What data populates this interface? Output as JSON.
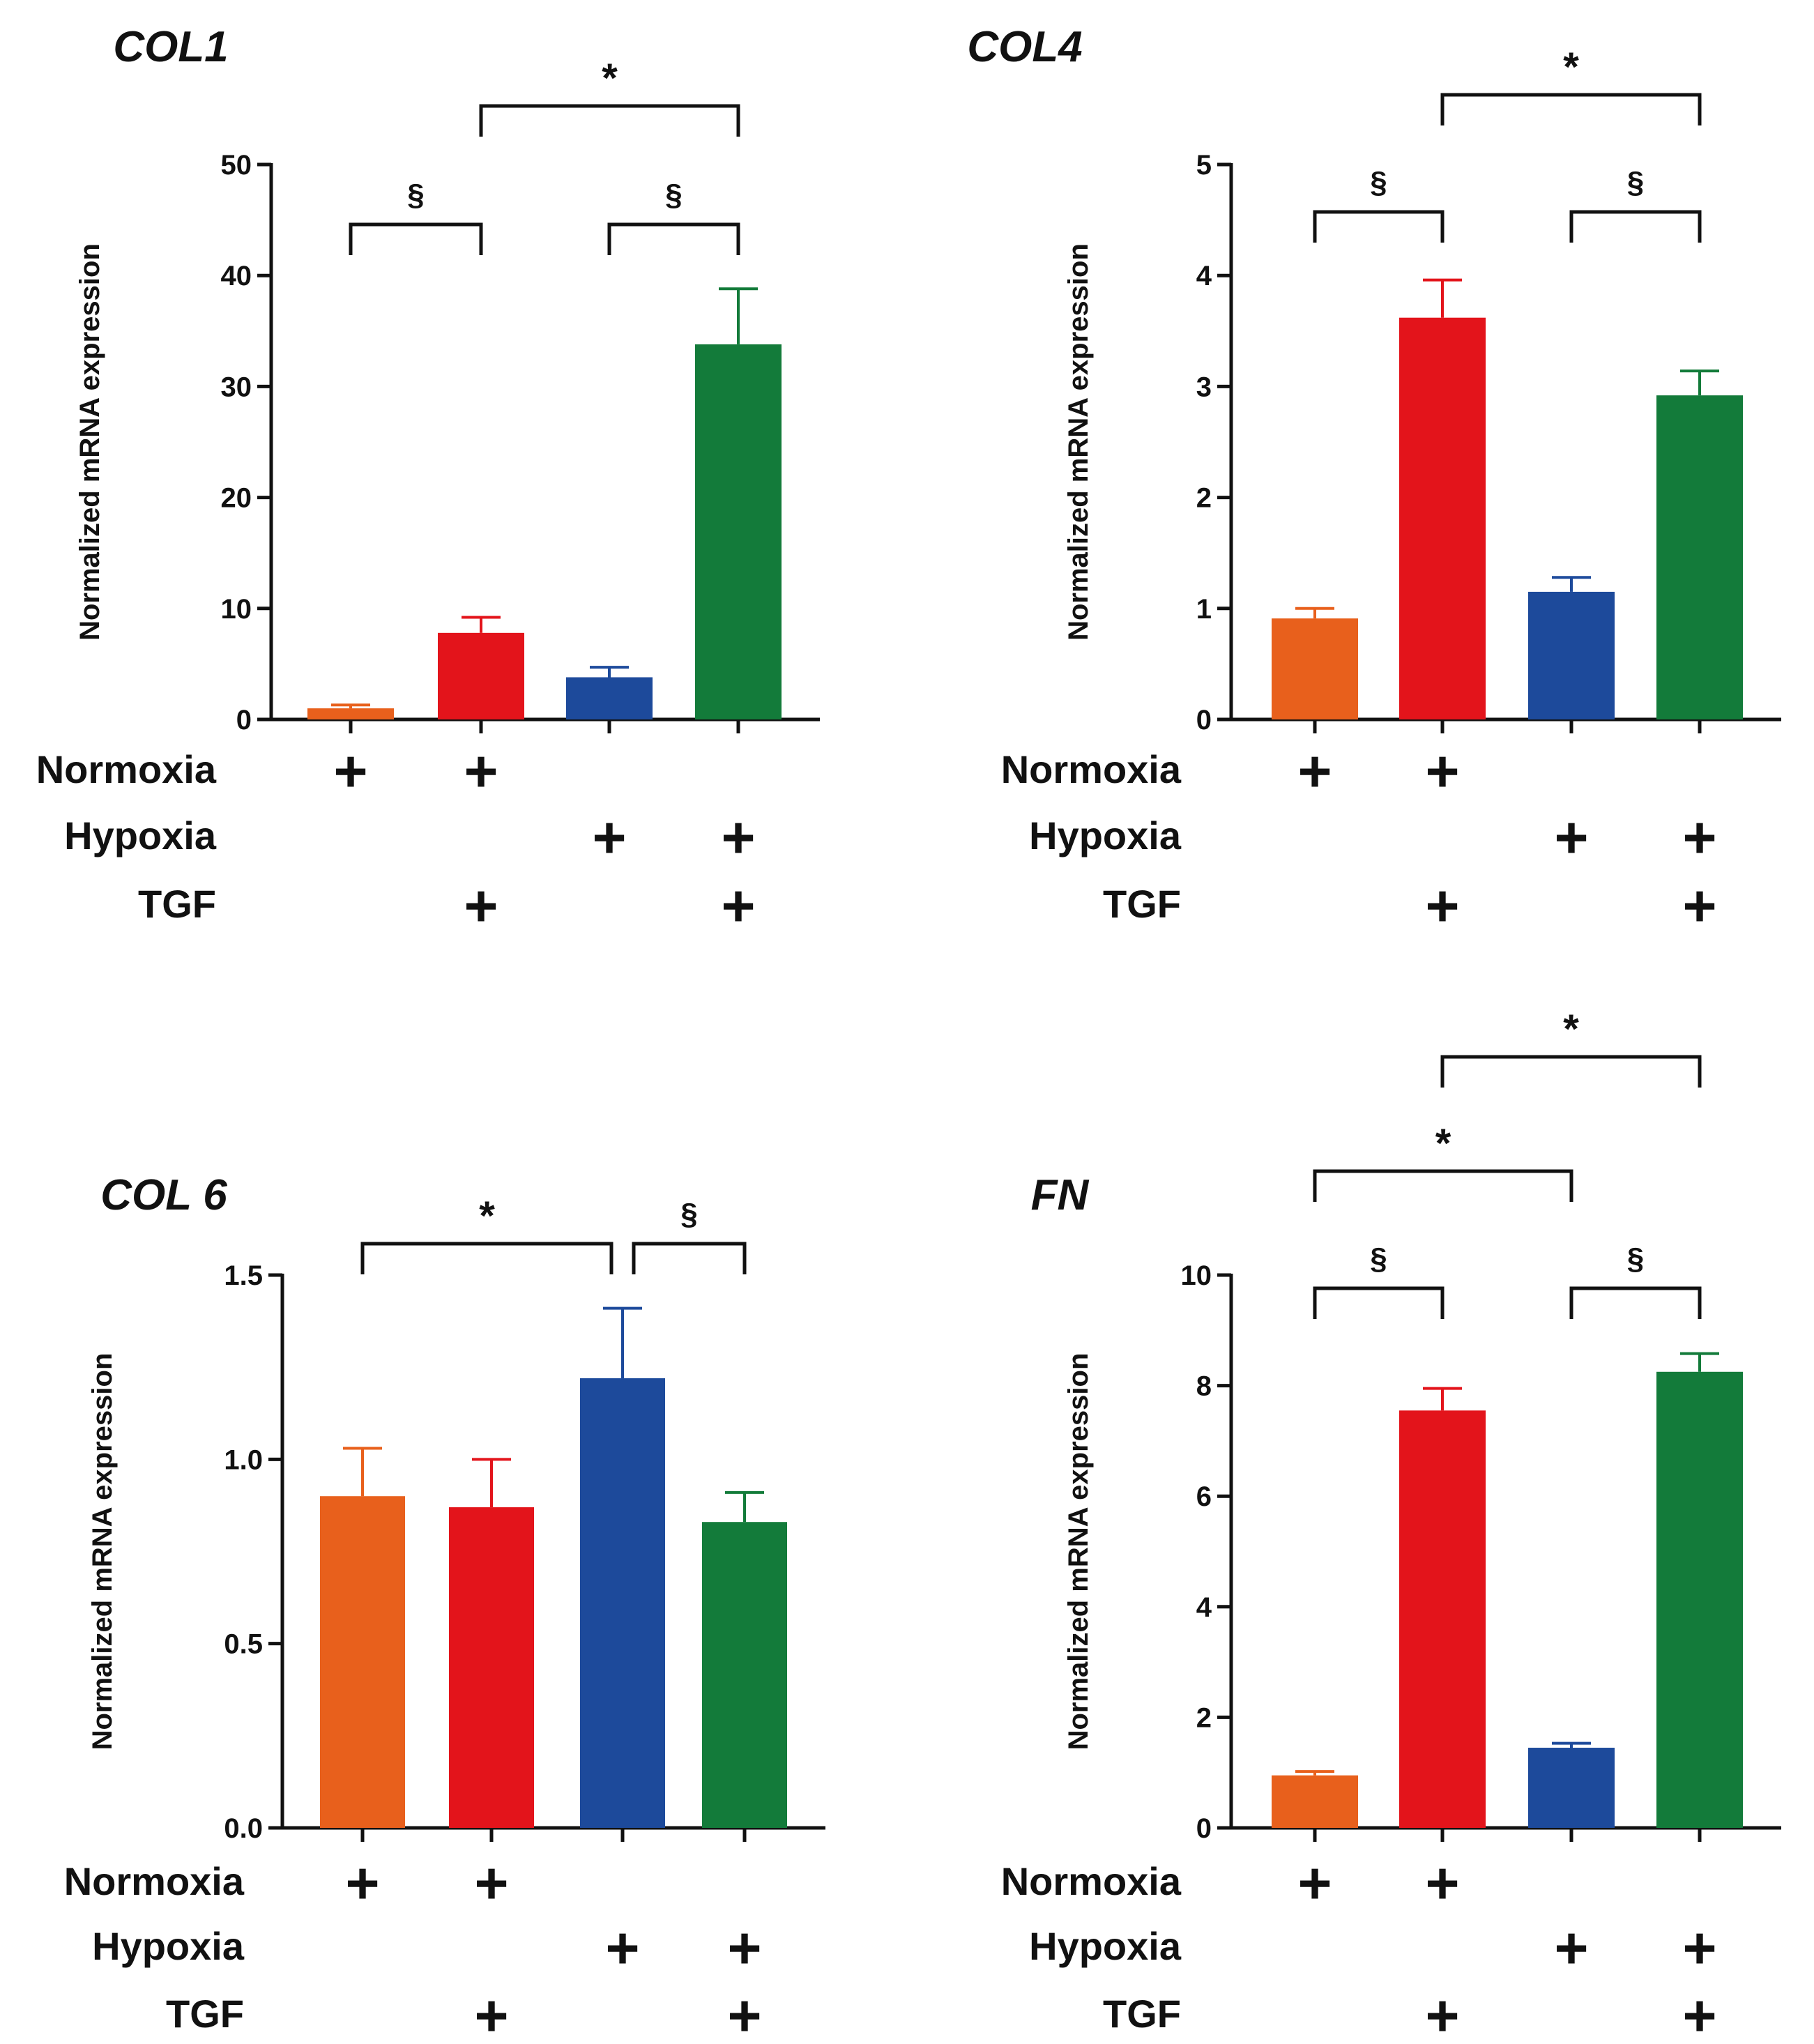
{
  "colors": {
    "Normoxia": "#e8601c",
    "Normoxia + TGF": "#e3141b",
    "Hypoxia": "#1d4a9b",
    "Hypoxia + TGF": "#137b3a"
  },
  "row_labels": [
    "Normoxia",
    "Hypoxia",
    "TGF"
  ],
  "plus_symbol": "+",
  "chart_data": [
    {
      "type": "bar",
      "title": "COL1",
      "ylabel": "Normalized mRNA expression",
      "ylim": [
        0,
        50
      ],
      "yticks": [
        "0",
        "10",
        "20",
        "30",
        "40",
        "50"
      ],
      "bar_colors": [
        "#e8601c",
        "#e3141b",
        "#1d4a9b",
        "#137b3a"
      ],
      "values": [
        1.0,
        7.8,
        3.8,
        33.8
      ],
      "errors": [
        0.3,
        1.4,
        0.9,
        5.0
      ],
      "conditions": {
        "Normoxia": [
          1,
          1,
          0,
          0
        ],
        "Hypoxia": [
          0,
          0,
          1,
          1
        ],
        "TGF": [
          0,
          1,
          0,
          1
        ]
      },
      "annotations": [
        {
          "from": 0,
          "to": 1,
          "label": "§"
        },
        {
          "from": 2,
          "to": 3,
          "label": "§"
        },
        {
          "from": 1,
          "to": 3,
          "label": "*"
        }
      ]
    },
    {
      "type": "bar",
      "title": "COL4",
      "ylabel": "Normalized mRNA expression",
      "ylim": [
        0,
        5
      ],
      "yticks": [
        "0",
        "1",
        "2",
        "3",
        "4",
        "5"
      ],
      "bar_colors": [
        "#e8601c",
        "#e3141b",
        "#1d4a9b",
        "#137b3a"
      ],
      "values": [
        0.91,
        3.62,
        1.15,
        2.92
      ],
      "errors": [
        0.09,
        0.34,
        0.13,
        0.22
      ],
      "conditions": {
        "Normoxia": [
          1,
          1,
          0,
          0
        ],
        "Hypoxia": [
          0,
          0,
          1,
          1
        ],
        "TGF": [
          0,
          1,
          0,
          1
        ]
      },
      "annotations": [
        {
          "from": 0,
          "to": 1,
          "label": "§"
        },
        {
          "from": 2,
          "to": 3,
          "label": "§"
        },
        {
          "from": 1,
          "to": 3,
          "label": "*"
        }
      ]
    },
    {
      "type": "bar",
      "title": "COL 6",
      "ylabel": "Normalized mRNA expression",
      "ylim": [
        0,
        1.5
      ],
      "yticks": [
        "0.0",
        "0.5",
        "1.0",
        "1.5"
      ],
      "bar_colors": [
        "#e8601c",
        "#e3141b",
        "#1d4a9b",
        "#137b3a"
      ],
      "values": [
        0.9,
        0.87,
        1.22,
        0.83
      ],
      "errors": [
        0.13,
        0.13,
        0.19,
        0.08
      ],
      "conditions": {
        "Normoxia": [
          1,
          1,
          0,
          0
        ],
        "Hypoxia": [
          0,
          0,
          1,
          1
        ],
        "TGF": [
          0,
          1,
          0,
          1
        ]
      },
      "annotations": [
        {
          "from": 0,
          "to": 2,
          "label": "*"
        },
        {
          "from": 2,
          "to": 3,
          "label": "§"
        }
      ]
    },
    {
      "type": "bar",
      "title": "FN",
      "ylabel": "Normalized mRNA expression",
      "ylim": [
        0,
        10
      ],
      "yticks": [
        "0",
        "2",
        "4",
        "6",
        "8",
        "10"
      ],
      "bar_colors": [
        "#e8601c",
        "#e3141b",
        "#1d4a9b",
        "#137b3a"
      ],
      "values": [
        0.95,
        7.55,
        1.45,
        8.25
      ],
      "errors": [
        0.07,
        0.4,
        0.08,
        0.33
      ],
      "conditions": {
        "Normoxia": [
          1,
          1,
          0,
          0
        ],
        "Hypoxia": [
          0,
          0,
          1,
          1
        ],
        "TGF": [
          0,
          1,
          0,
          1
        ]
      },
      "annotations": [
        {
          "from": 0,
          "to": 1,
          "label": "§"
        },
        {
          "from": 2,
          "to": 3,
          "label": "§"
        },
        {
          "from": 0,
          "to": 2,
          "label": "*"
        },
        {
          "from": 1,
          "to": 3,
          "label": "*"
        }
      ]
    }
  ]
}
